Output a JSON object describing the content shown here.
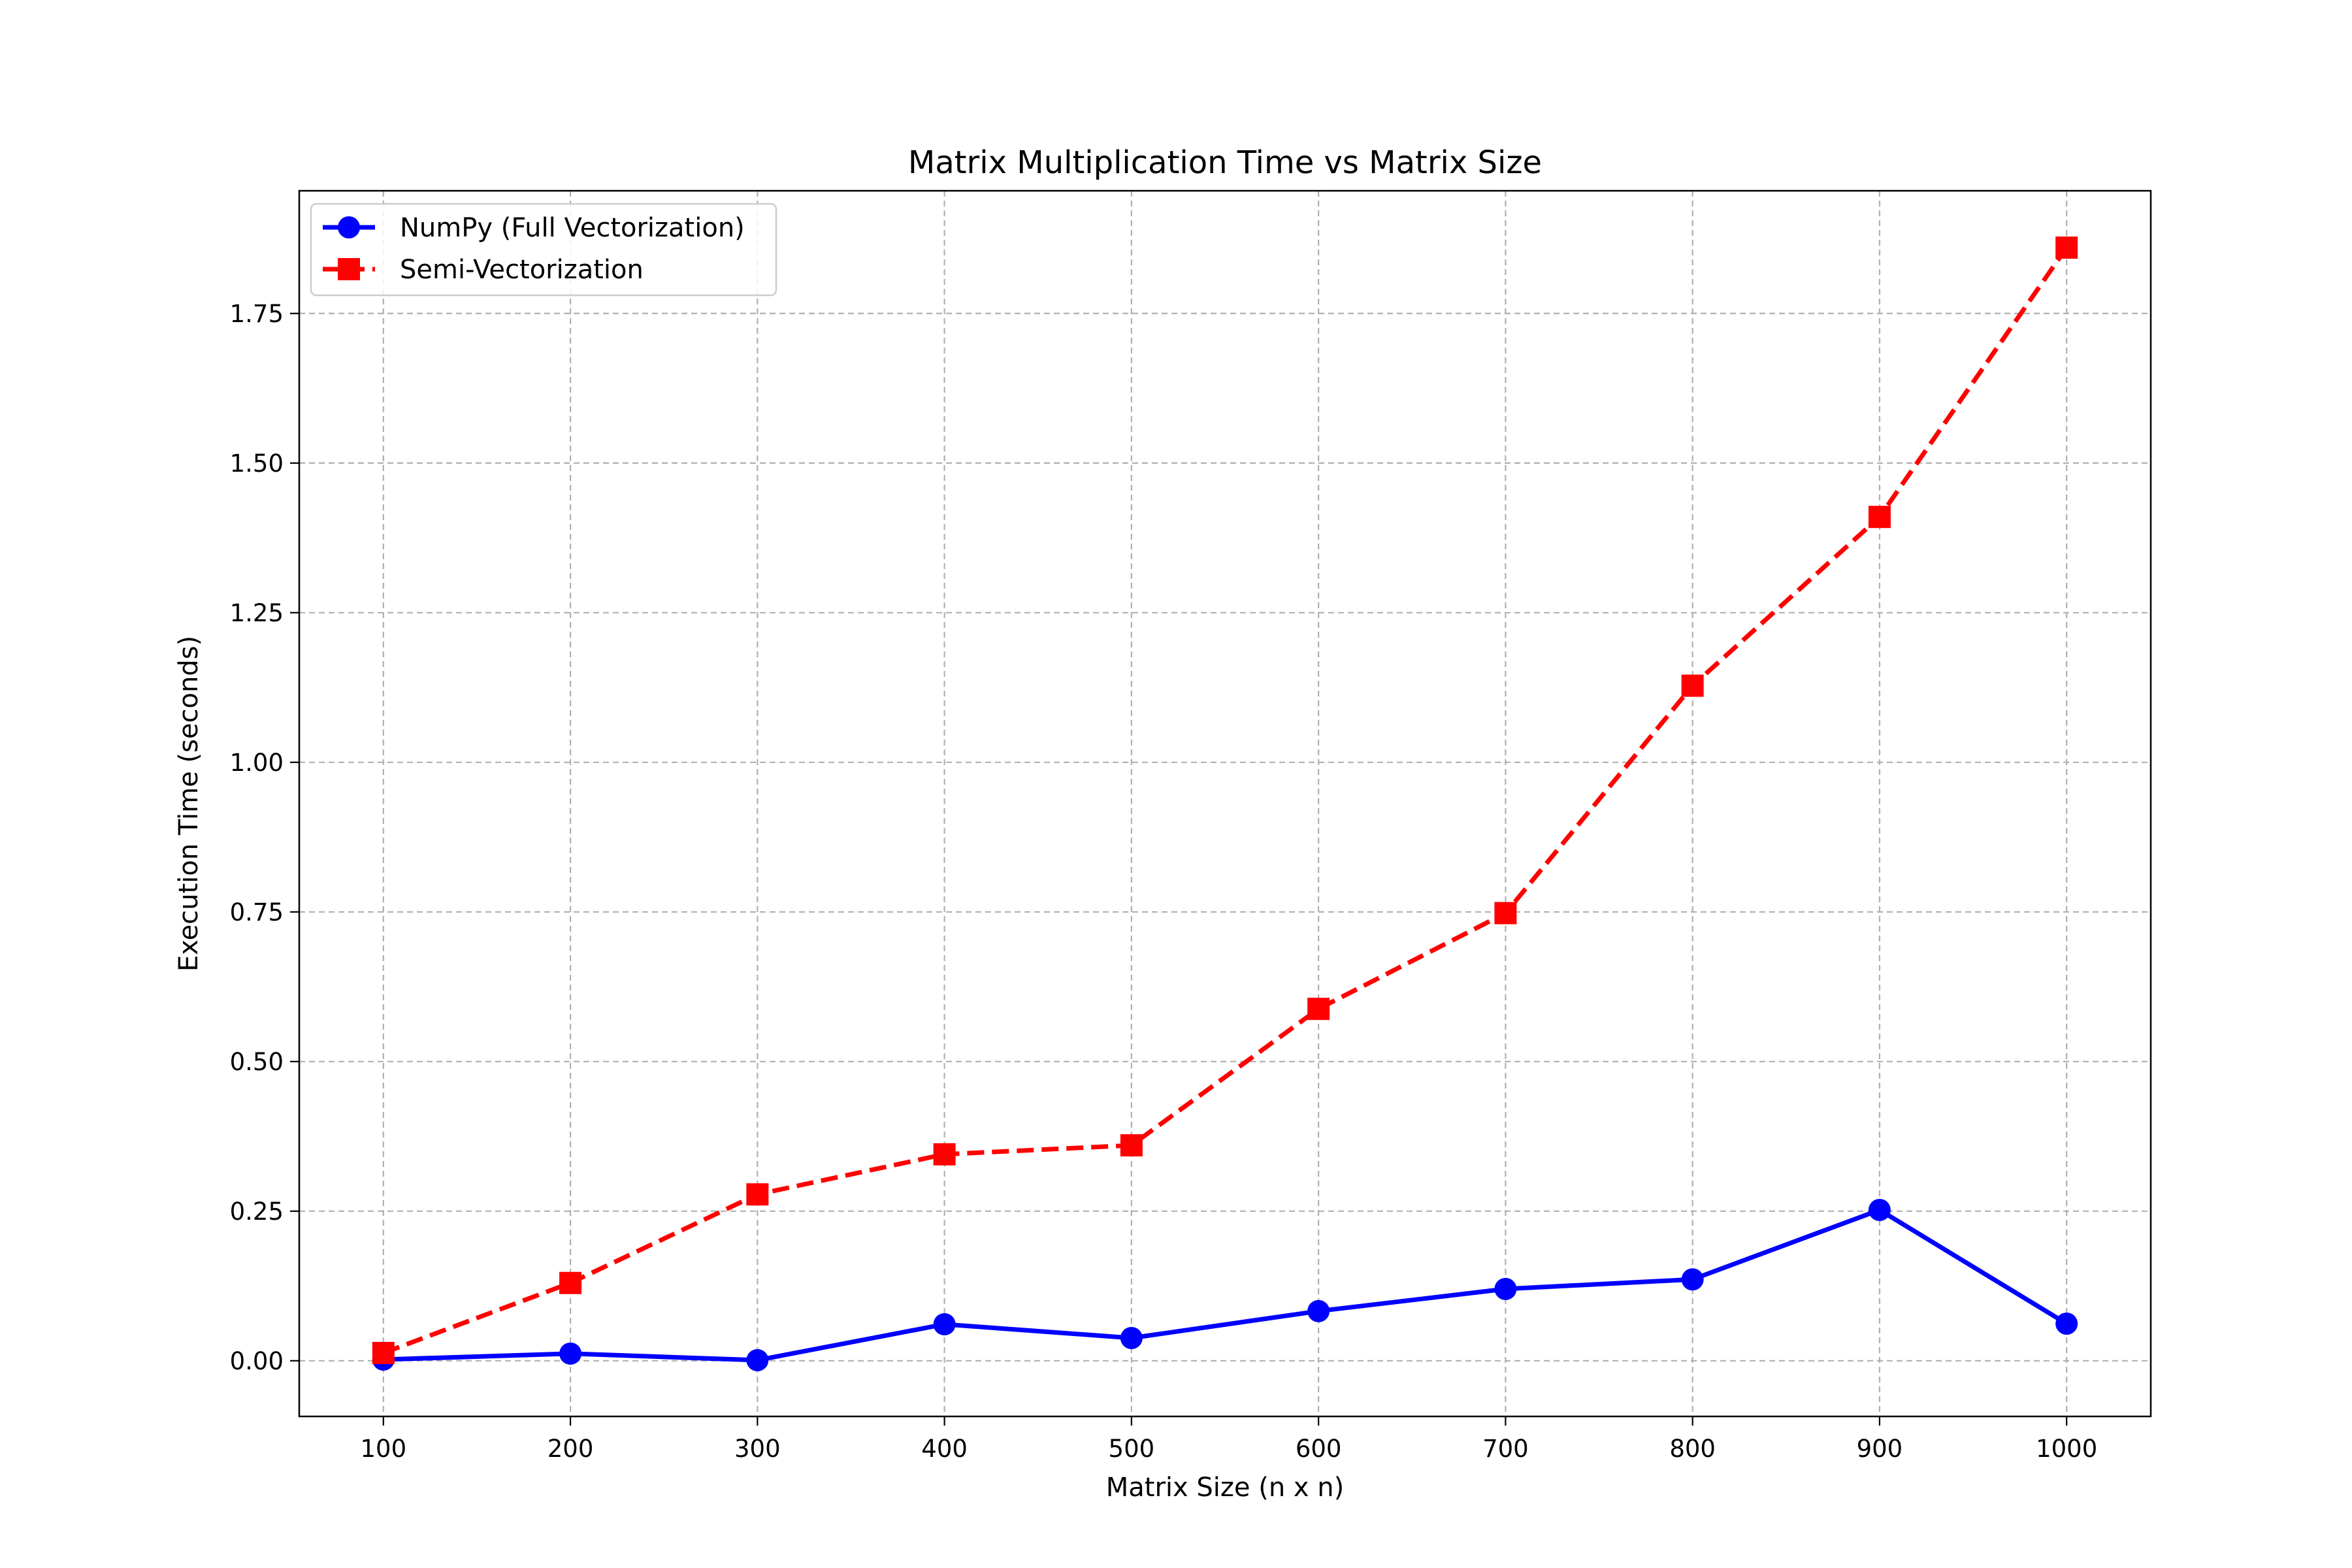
{
  "chart_data": {
    "type": "line",
    "title": "Matrix Multiplication Time vs Matrix Size",
    "xlabel": "Matrix Size (n x n)",
    "ylabel": "Execution Time (seconds)",
    "x": [
      100,
      200,
      300,
      400,
      500,
      600,
      700,
      800,
      900,
      1000
    ],
    "x_tick_labels": [
      "100",
      "200",
      "300",
      "400",
      "500",
      "600",
      "700",
      "800",
      "900",
      "1000"
    ],
    "y_ticks": [
      0.0,
      0.25,
      0.5,
      0.75,
      1.0,
      1.25,
      1.5,
      1.75
    ],
    "y_tick_labels": [
      "0.00",
      "0.25",
      "0.50",
      "0.75",
      "1.00",
      "1.25",
      "1.50",
      "1.75"
    ],
    "xlim": [
      55,
      1045
    ],
    "ylim": [
      -0.093,
      1.955
    ],
    "grid": true,
    "legend_position": "upper-left",
    "series": [
      {
        "name": "NumPy (Full Vectorization)",
        "color": "#0000ff",
        "line_style": "solid",
        "marker": "circle",
        "values": [
          0.002,
          0.012,
          0.001,
          0.061,
          0.038,
          0.083,
          0.12,
          0.136,
          0.252,
          0.062
        ]
      },
      {
        "name": "Semi-Vectorization",
        "color": "#ff0000",
        "line_style": "dashed",
        "marker": "square",
        "values": [
          0.013,
          0.13,
          0.278,
          0.345,
          0.36,
          0.588,
          0.748,
          1.128,
          1.41,
          1.86
        ]
      }
    ]
  }
}
